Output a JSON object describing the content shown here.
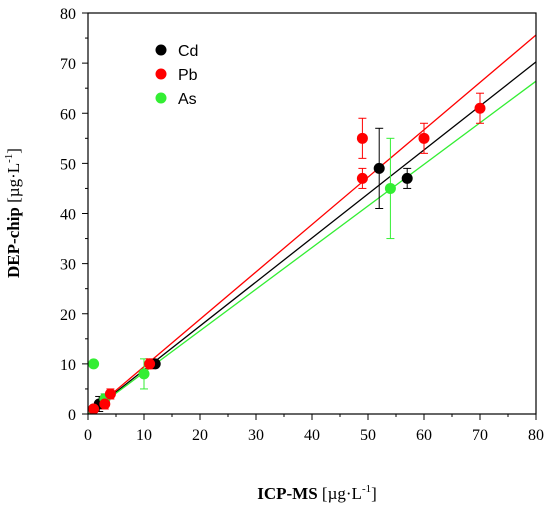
{
  "chart_data": {
    "type": "scatter",
    "xlabel_bold": "ICP-MS",
    "xlabel_unit": " [µg·L",
    "xlabel_sup": "-1",
    "xlabel_end": "]",
    "ylabel_bold": "DEP-chip",
    "ylabel_unit": " [µg·L",
    "ylabel_sup": "-1",
    "ylabel_end": "]",
    "xlim": [
      0,
      80
    ],
    "ylim": [
      0,
      80
    ],
    "xticks": [
      "0",
      "10",
      "20",
      "30",
      "40",
      "50",
      "60",
      "70",
      "80"
    ],
    "yticks": [
      "0",
      "10",
      "20",
      "30",
      "40",
      "50",
      "60",
      "70",
      "80"
    ],
    "grid": false,
    "legend_position": "top-left",
    "series": [
      {
        "name": "Cd",
        "color": "#000000",
        "fit": {
          "slope": 0.878,
          "intercept": 0
        },
        "points": [
          {
            "x": 1,
            "y": 1,
            "err": 0.5
          },
          {
            "x": 2,
            "y": 2,
            "err": 1.5
          },
          {
            "x": 3,
            "y": 3,
            "err": 1
          },
          {
            "x": 12,
            "y": 10,
            "err": 0.5
          },
          {
            "x": 52,
            "y": 49,
            "err": 8
          },
          {
            "x": 57,
            "y": 47,
            "err": 2
          }
        ]
      },
      {
        "name": "Pb",
        "color": "#ff0000",
        "fit": {
          "slope": 0.945,
          "intercept": 0
        },
        "points": [
          {
            "x": 1,
            "y": 1,
            "err": 0.5
          },
          {
            "x": 3,
            "y": 2,
            "err": 1
          },
          {
            "x": 4,
            "y": 4,
            "err": 1
          },
          {
            "x": 11,
            "y": 10,
            "err": 1
          },
          {
            "x": 49,
            "y": 55,
            "err": 4
          },
          {
            "x": 49,
            "y": 47,
            "err": 2
          },
          {
            "x": 60,
            "y": 55,
            "err": 3
          },
          {
            "x": 70,
            "y": 61,
            "err": 3
          }
        ]
      },
      {
        "name": "As",
        "color": "#33ee33",
        "fit": {
          "slope": 0.83,
          "intercept": 0
        },
        "points": [
          {
            "x": 1,
            "y": 10,
            "err": 0.5
          },
          {
            "x": 3,
            "y": 3,
            "err": 1
          },
          {
            "x": 10,
            "y": 8,
            "err": 3
          },
          {
            "x": 54,
            "y": 45,
            "err": 10
          }
        ]
      }
    ]
  }
}
